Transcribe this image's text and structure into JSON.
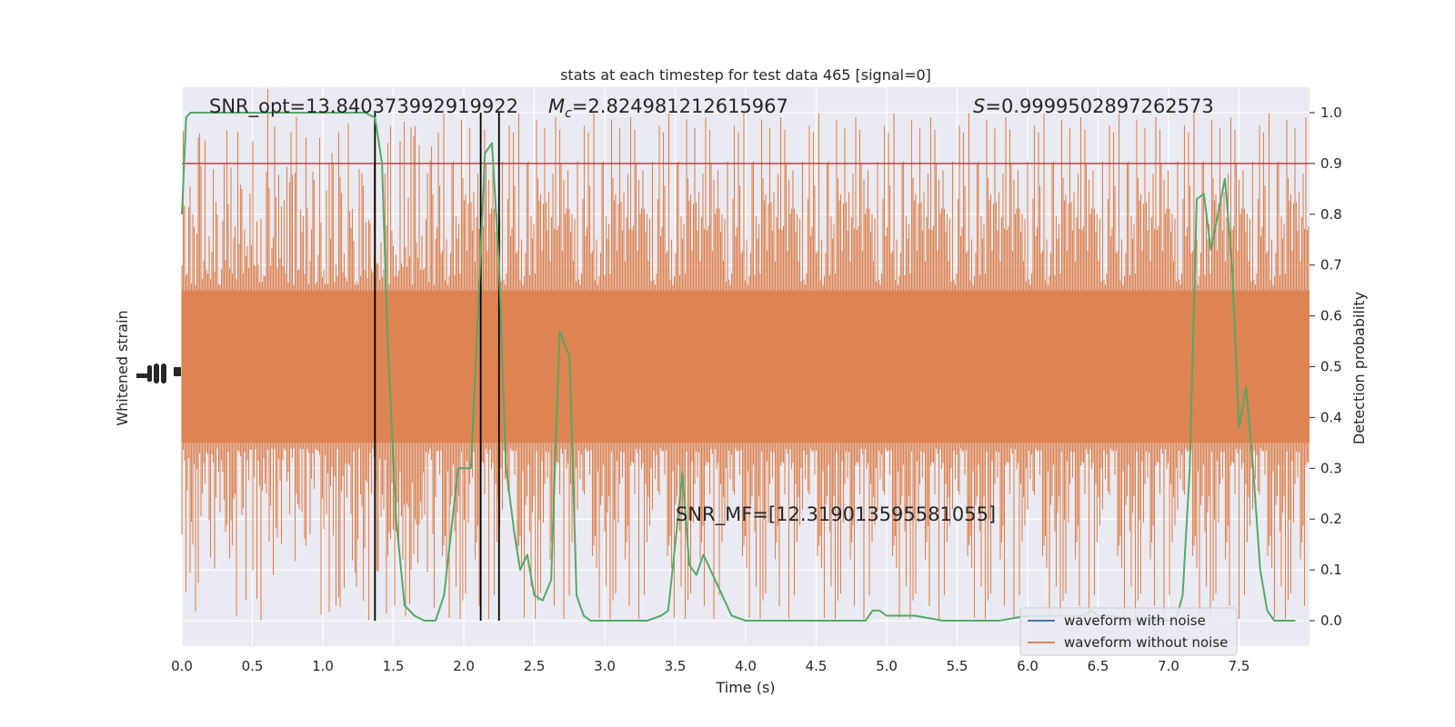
{
  "chart_data": {
    "type": "line",
    "title": "stats at each timestep for test data 465 [signal=0]",
    "xlabel": "Time (s)",
    "ylabel_left": "Whitened strain",
    "ylabel_right": "Detection probability",
    "xlim": [
      0.0,
      8.0
    ],
    "ylim_right": [
      -0.05,
      1.05
    ],
    "x_ticks": [
      "0.0",
      "0.5",
      "1.0",
      "1.5",
      "2.0",
      "2.5",
      "3.0",
      "3.5",
      "4.0",
      "4.5",
      "5.0",
      "5.5",
      "6.0",
      "6.5",
      "7.0",
      "7.5"
    ],
    "y_ticks_right": [
      "0.0",
      "0.1",
      "0.2",
      "0.3",
      "0.4",
      "0.5",
      "0.6",
      "0.7",
      "0.8",
      "0.9",
      "1.0"
    ],
    "grid": true,
    "legend_position": "lower-right",
    "threshold": 0.9,
    "vertical_lines_x": [
      1.37,
      2.12,
      2.25
    ],
    "annotations": {
      "snr_opt": "SNR_opt=13.840373992919922",
      "mc_symbol": "M",
      "mc_sub": "c",
      "mc_value": "=2.824981212615967",
      "s_symbol": "S",
      "s_value": "=0.9999502897262573",
      "snr_mf": "SNR_MF=[12.319013595581055]"
    },
    "series": [
      {
        "name": "waveform with noise",
        "color": "#4c72b0"
      },
      {
        "name": "waveform without noise",
        "color": "#dd8452"
      },
      {
        "color": "#55a868",
        "x": [
          0.0,
          0.03,
          0.06,
          0.1,
          0.2,
          0.3,
          0.4,
          0.5,
          0.6,
          0.7,
          0.8,
          0.9,
          1.0,
          1.1,
          1.2,
          1.3,
          1.37,
          1.42,
          1.46,
          1.52,
          1.58,
          1.65,
          1.72,
          1.8,
          1.86,
          1.92,
          1.96,
          2.0,
          2.05,
          2.1,
          2.15,
          2.2,
          2.25,
          2.3,
          2.36,
          2.4,
          2.45,
          2.5,
          2.56,
          2.62,
          2.68,
          2.75,
          2.8,
          2.85,
          2.9,
          3.0,
          3.1,
          3.2,
          3.3,
          3.4,
          3.45,
          3.5,
          3.55,
          3.6,
          3.65,
          3.7,
          3.75,
          3.8,
          3.85,
          3.9,
          4.0,
          4.05,
          4.1,
          4.2,
          4.3,
          4.5,
          4.7,
          4.85,
          4.9,
          4.95,
          5.0,
          5.1,
          5.2,
          5.4,
          5.6,
          5.8,
          6.0,
          6.2,
          6.4,
          6.45,
          6.5,
          6.6,
          6.7,
          6.8,
          6.9,
          7.0,
          7.05,
          7.1,
          7.15,
          7.2,
          7.25,
          7.3,
          7.35,
          7.4,
          7.45,
          7.5,
          7.55,
          7.6,
          7.65,
          7.7,
          7.75,
          7.8,
          7.85,
          7.9
        ],
        "y": [
          0.8,
          0.99,
          1.0,
          1.0,
          1.0,
          1.0,
          1.0,
          1.0,
          1.0,
          1.0,
          1.0,
          1.0,
          1.0,
          1.0,
          1.0,
          1.0,
          0.99,
          0.9,
          0.55,
          0.2,
          0.03,
          0.01,
          0.0,
          0.0,
          0.05,
          0.2,
          0.3,
          0.3,
          0.3,
          0.6,
          0.92,
          0.94,
          0.7,
          0.3,
          0.17,
          0.1,
          0.13,
          0.05,
          0.04,
          0.08,
          0.57,
          0.52,
          0.05,
          0.01,
          0.0,
          0.0,
          0.0,
          0.0,
          0.0,
          0.01,
          0.02,
          0.15,
          0.29,
          0.11,
          0.09,
          0.13,
          0.1,
          0.07,
          0.04,
          0.01,
          0.0,
          0.0,
          0.0,
          0.0,
          0.0,
          0.0,
          0.0,
          0.0,
          0.02,
          0.02,
          0.01,
          0.01,
          0.01,
          0.0,
          0.0,
          0.0,
          0.01,
          0.01,
          0.01,
          0.02,
          0.01,
          0.01,
          0.0,
          0.0,
          0.0,
          0.0,
          0.0,
          0.05,
          0.3,
          0.83,
          0.84,
          0.73,
          0.8,
          0.87,
          0.7,
          0.38,
          0.46,
          0.3,
          0.1,
          0.02,
          0.0,
          0.0,
          0.0,
          0.0
        ]
      }
    ]
  }
}
